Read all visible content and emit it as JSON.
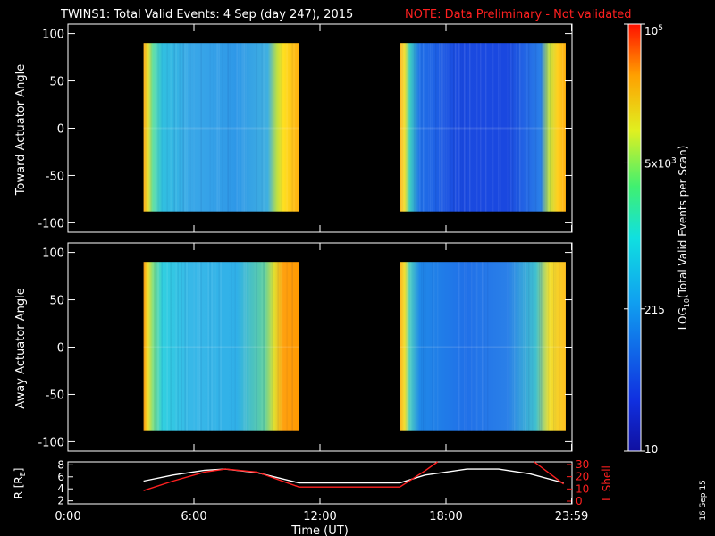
{
  "title": {
    "main": "TWINS1: Total Valid Events:  4 Sep (day 247), 2015",
    "note": "NOTE: Data Preliminary - Not validated",
    "note_color": "#ff2020"
  },
  "date_stamp": "16 Sep 15",
  "chart_data": [
    {
      "type": "heatmap",
      "ylabel": "Toward Actuator Angle",
      "ylim": [
        -110,
        110
      ],
      "yticks": [
        100,
        50,
        0,
        -50,
        -100
      ],
      "xlim_hours": [
        0,
        24
      ],
      "data_extent_y": [
        -88,
        90
      ],
      "intervals": [
        {
          "start_hour": 3.6,
          "end_hour": 11.0,
          "description": "edges yellow/orange, interior light blue"
        },
        {
          "start_hour": 15.8,
          "end_hour": 23.7,
          "description": "edges yellow/orange, interior deep blue"
        }
      ],
      "grid": false
    },
    {
      "type": "heatmap",
      "ylabel": "Away Actuator Angle",
      "ylim": [
        -110,
        110
      ],
      "yticks": [
        100,
        50,
        0,
        -50,
        -100
      ],
      "xlim_hours": [
        0,
        24
      ],
      "data_extent_y": [
        -88,
        90
      ],
      "intervals": [
        {
          "start_hour": 3.6,
          "end_hour": 11.0,
          "description": "edges yellow/orange, interior cyan-blue"
        },
        {
          "start_hour": 15.8,
          "end_hour": 23.7,
          "description": "edges yellow/orange, interior blue"
        }
      ],
      "grid": false
    },
    {
      "type": "line",
      "ylabel_left": "R [R",
      "ylabel_left_sub": "E",
      "ylabel_left_close": "]",
      "ylabel_right": "L Shell",
      "ylim_left": [
        1.5,
        8.5
      ],
      "yticks_left": [
        8,
        6,
        4,
        2
      ],
      "ylim_right": [
        0,
        30
      ],
      "yticks_right": [
        30,
        20,
        10,
        0
      ],
      "xlabel": "Time (UT)",
      "xticks": [
        {
          "hour": 0,
          "label": "0:00"
        },
        {
          "hour": 6,
          "label": "6:00"
        },
        {
          "hour": 12,
          "label": "12:00"
        },
        {
          "hour": 18,
          "label": "18:00"
        },
        {
          "hour": 23.98,
          "label": "23:59"
        }
      ],
      "series": [
        {
          "color": "#ffffff",
          "axis": "left",
          "x": [
            3.6,
            5,
            6.5,
            7.5,
            9,
            11,
            12,
            15.8,
            17,
            19,
            20.5,
            22,
            23.6
          ],
          "y": [
            5.3,
            6.3,
            7.1,
            7.3,
            6.7,
            5.0,
            5.0,
            5.0,
            6.3,
            7.3,
            7.3,
            6.5,
            5.0
          ]
        },
        {
          "color": "#ff2020",
          "axis": "left",
          "x": [
            3.6,
            5,
            6.5,
            7.5,
            9,
            11,
            12,
            15.8,
            17,
            17.6
          ],
          "y": [
            3.7,
            5.3,
            6.8,
            7.3,
            6.8,
            4.3,
            4.3,
            4.3,
            7.0,
            8.5
          ]
        },
        {
          "color": "#ff2020",
          "axis": "left",
          "x": [
            22.2,
            23.6
          ],
          "y": [
            8.5,
            4.8
          ]
        }
      ]
    }
  ],
  "colorbar": {
    "label": "LOG",
    "label_sub": "10",
    "label_rest": "(Total Valid Events per Scan)",
    "ticks": [
      {
        "value": "10",
        "text": "10",
        "sup": ""
      },
      {
        "value": "215",
        "text": "215",
        "sup": ""
      },
      {
        "value": "5000",
        "text": "5x10",
        "sup": "3"
      },
      {
        "value": "100000",
        "text": "10",
        "sup": "5"
      }
    ]
  },
  "colors": {
    "orange": "#ff9a00",
    "yellow": "#ffe020",
    "cyan": "#20d8e8",
    "blue": "#1a7cf0",
    "deep_blue": "#1a40e0"
  }
}
